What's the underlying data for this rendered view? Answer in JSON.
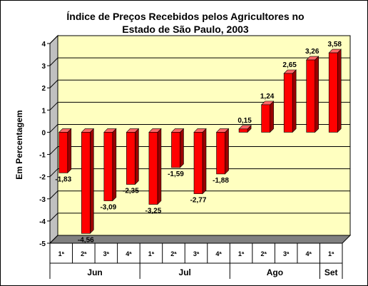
{
  "chart_data": {
    "type": "bar",
    "title_lines": [
      "Índice de Preços Recebidos pelos Agricultores no",
      "Estado de São Paulo, 2003"
    ],
    "ylabel": "Em Percentagem",
    "xlabel": "",
    "ylim": [
      -5,
      4
    ],
    "y_ticks": [
      "4",
      "3",
      "2",
      "1",
      "0",
      "-1",
      "-2",
      "-3",
      "-4",
      "-5"
    ],
    "grid": true,
    "legend": "none",
    "categories": [
      "1ª",
      "2ª",
      "3ª",
      "4ª",
      "1ª",
      "2ª",
      "3ª",
      "4ª",
      "1ª",
      "2ª",
      "3ª",
      "4ª",
      "1ª"
    ],
    "groups": [
      {
        "label": "Jun",
        "count": 4
      },
      {
        "label": "Jul",
        "count": 4
      },
      {
        "label": "Ago",
        "count": 4
      },
      {
        "label": "Set",
        "count": 1
      }
    ],
    "values": [
      -1.83,
      -4.56,
      -3.09,
      -2.35,
      -3.25,
      -1.59,
      -2.77,
      -1.88,
      0.15,
      1.24,
      2.65,
      3.26,
      3.58
    ],
    "value_labels": [
      "-1,83",
      "-4,56",
      "-3,09",
      "-2,35",
      "-3,25",
      "-1,59",
      "-2,77",
      "-1,88",
      "0,15",
      "1,24",
      "2,65",
      "3,26",
      "3,58"
    ],
    "colors": {
      "bar_front": "#ff0000",
      "bar_side": "#990000",
      "bar_top": "#ff6666",
      "plot_back": "#ffffc0",
      "plot_floor": "#808080",
      "grid": "#000000"
    }
  }
}
